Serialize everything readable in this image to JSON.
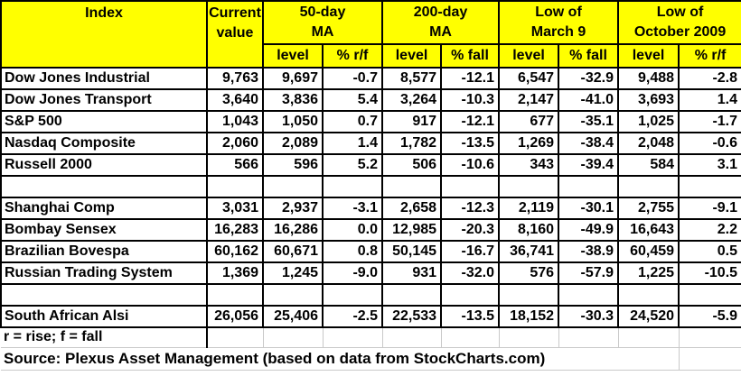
{
  "colors": {
    "header_bg": "#FFFF00",
    "cell_bg": "#FFFFFF",
    "border": "#000000",
    "gridline": "#C9C9C9",
    "text": "#000000"
  },
  "header": {
    "index_label": "Index",
    "current_value_label": "Current\nvalue",
    "groups": [
      {
        "label": "50-day\nMA",
        "sub": [
          "level",
          "% r/f"
        ]
      },
      {
        "label": "200-day\nMA",
        "sub": [
          "level",
          "% fall"
        ]
      },
      {
        "label": "Low of\nMarch 9",
        "sub": [
          "level",
          "% fall"
        ]
      },
      {
        "label": "Low of\nOctober 2009",
        "sub": [
          "level",
          "% r/f"
        ]
      }
    ]
  },
  "rows": [
    {
      "name": "Dow Jones Industrial",
      "values": [
        "9,763",
        "9,697",
        "-0.7",
        "8,577",
        "-12.1",
        "6,547",
        "-32.9",
        "9,488",
        "-2.8"
      ]
    },
    {
      "name": "Dow Jones Transport",
      "values": [
        "3,640",
        "3,836",
        "5.4",
        "3,264",
        "-10.3",
        "2,147",
        "-41.0",
        "3,693",
        "1.4"
      ]
    },
    {
      "name": "S&P 500",
      "values": [
        "1,043",
        "1,050",
        "0.7",
        "917",
        "-12.1",
        "677",
        "-35.1",
        "1,025",
        "-1.7"
      ]
    },
    {
      "name": "Nasdaq Composite",
      "values": [
        "2,060",
        "2,089",
        "1.4",
        "1,782",
        "-13.5",
        "1,269",
        "-38.4",
        "2,048",
        "-0.6"
      ]
    },
    {
      "name": "Russell 2000",
      "values": [
        "566",
        "596",
        "5.2",
        "506",
        "-10.6",
        "343",
        "-39.4",
        "584",
        "3.1"
      ]
    },
    {
      "name": "",
      "values": [
        "",
        "",
        "",
        "",
        "",
        "",
        "",
        "",
        ""
      ]
    },
    {
      "name": "Shanghai Comp",
      "values": [
        "3,031",
        "2,937",
        "-3.1",
        "2,658",
        "-12.3",
        "2,119",
        "-30.1",
        "2,755",
        "-9.1"
      ]
    },
    {
      "name": "Bombay Sensex",
      "values": [
        "16,283",
        "16,286",
        "0.0",
        "12,985",
        "-20.3",
        "8,160",
        "-49.9",
        "16,643",
        "2.2"
      ]
    },
    {
      "name": "Brazilian Bovespa",
      "values": [
        "60,162",
        "60,671",
        "0.8",
        "50,145",
        "-16.7",
        "36,741",
        "-38.9",
        "60,459",
        "0.5"
      ]
    },
    {
      "name": "Russian Trading System",
      "values": [
        "1,369",
        "1,245",
        "-9.0",
        "931",
        "-32.0",
        "576",
        "-57.9",
        "1,225",
        "-10.5"
      ]
    },
    {
      "name": "",
      "values": [
        "",
        "",
        "",
        "",
        "",
        "",
        "",
        "",
        ""
      ]
    },
    {
      "name": "South African Alsi",
      "values": [
        "26,056",
        "25,406",
        "-2.5",
        "22,533",
        "-13.5",
        "18,152",
        "-30.3",
        "24,520",
        "-5.9"
      ]
    }
  ],
  "footer": {
    "legend": "r = rise; f = fall",
    "source": "Source: Plexus Asset Management (based on data from StockCharts.com)"
  }
}
